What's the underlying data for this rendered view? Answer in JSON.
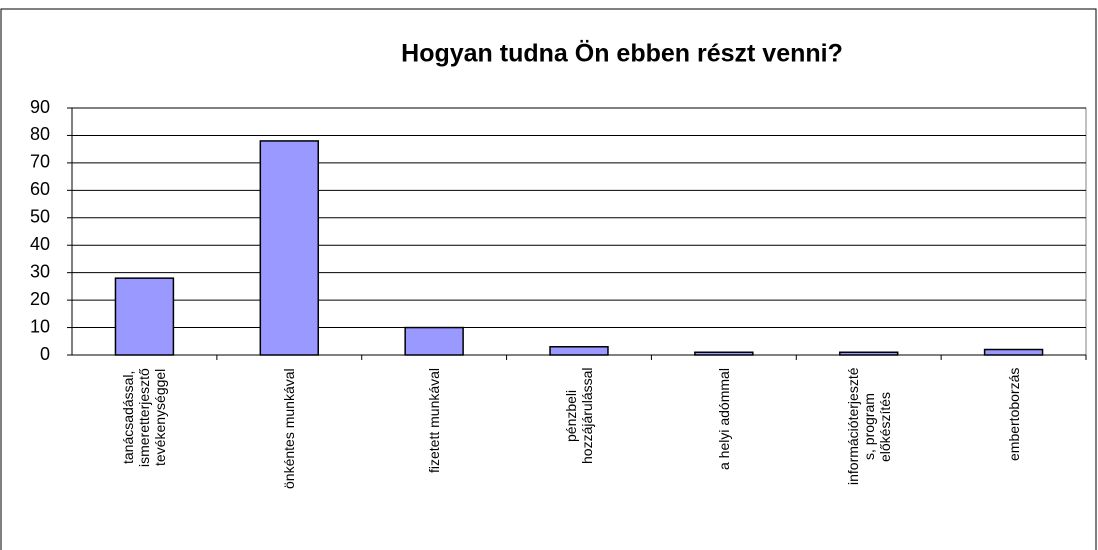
{
  "chart_data": {
    "type": "bar",
    "title": "Hogyan tudna Ön ebben részt venni?",
    "categories": [
      "tanácsadással,\nismeretterjesztő\ntevékenységgel",
      "önkéntes munkával",
      "fizetett munkával",
      "pénzbeli\nhozzájárulással",
      "a helyi adómmal",
      "információterjeszté\ns, program\nelőkészítés",
      "embertoborzás"
    ],
    "values": [
      28,
      78,
      10,
      3,
      1,
      1,
      2
    ],
    "color": "#9999ff",
    "ylim": [
      0,
      90
    ],
    "yticks": [
      0,
      10,
      20,
      30,
      40,
      50,
      60,
      70,
      80,
      90
    ],
    "grid": true
  }
}
